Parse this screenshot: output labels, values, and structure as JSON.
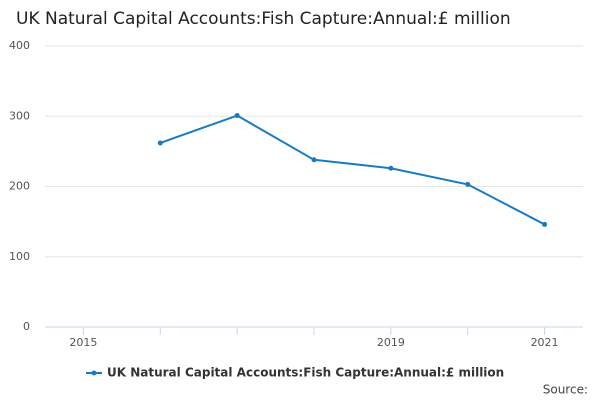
{
  "chart_data": {
    "type": "line",
    "title": "UK Natural Capital Accounts:Fish Capture:Annual:£ million",
    "x": [
      2016,
      2017,
      2018,
      2019,
      2020,
      2021
    ],
    "series": [
      {
        "name": "UK Natural Capital Accounts:Fish Capture:Annual:£ million",
        "color": "#1a7bbf",
        "values": [
          262,
          301,
          238,
          226,
          203,
          146
        ]
      }
    ],
    "xlim": [
      2014.5,
      2021.5
    ],
    "xticks": [
      2015,
      2019,
      2021
    ],
    "xminorticks": [
      2016,
      2017,
      2018,
      2020
    ],
    "ylim": [
      0,
      400
    ],
    "yticks": [
      0,
      100,
      200,
      300,
      400
    ],
    "grid": true,
    "source": "Source:"
  }
}
